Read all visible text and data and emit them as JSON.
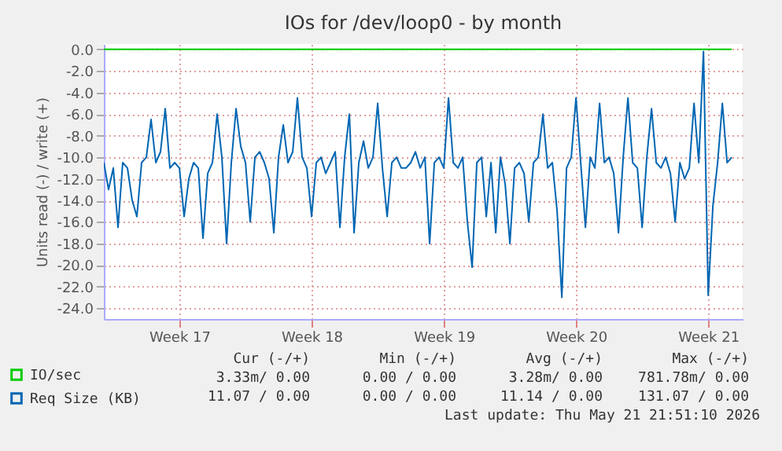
{
  "chart_data": {
    "type": "line",
    "title": "IOs for /dev/loop0 - by month",
    "ylabel": "Units read (-) / write (+)",
    "categories": [
      null,
      null,
      null,
      null,
      null,
      null,
      null,
      null,
      null,
      null,
      null,
      null,
      null,
      null,
      null,
      null,
      "Week 17",
      null,
      null,
      null,
      null,
      null,
      null,
      null,
      null,
      null,
      null,
      null,
      null,
      null,
      null,
      null,
      null,
      null,
      null,
      null,
      null,
      null,
      null,
      null,
      null,
      null,
      null,
      null,
      "Week 18",
      null,
      null,
      null,
      null,
      null,
      null,
      null,
      null,
      null,
      null,
      null,
      null,
      null,
      null,
      null,
      null,
      null,
      null,
      null,
      null,
      null,
      null,
      null,
      null,
      null,
      null,
      null,
      "Week 19",
      null,
      null,
      null,
      null,
      null,
      null,
      null,
      null,
      null,
      null,
      null,
      null,
      null,
      null,
      null,
      null,
      null,
      null,
      null,
      null,
      null,
      null,
      null,
      null,
      null,
      null,
      null,
      "Week 20",
      null,
      null,
      null,
      null,
      null,
      null,
      null,
      null,
      null,
      null,
      null,
      null,
      null,
      null,
      null,
      null,
      null,
      null,
      null,
      null,
      null,
      null,
      null,
      null,
      null,
      null,
      null,
      "Week 21",
      null,
      null,
      null,
      null,
      null
    ],
    "ylim": [
      -25,
      0.5
    ],
    "yticks": [
      {
        "value": -24,
        "label": "-24.0"
      },
      {
        "value": -22,
        "label": "-22.0"
      },
      {
        "value": -20,
        "label": "-20.0"
      },
      {
        "value": -18,
        "label": "-18.0"
      },
      {
        "value": -16,
        "label": "-16.0"
      },
      {
        "value": -14,
        "label": "-14.0"
      },
      {
        "value": -12,
        "label": "-12.0"
      },
      {
        "value": -10,
        "label": "-10.0"
      },
      {
        "value": -8,
        "label": "-8.0"
      },
      {
        "value": -6,
        "label": "-6.0"
      },
      {
        "value": -4,
        "label": "-4.0"
      },
      {
        "value": -2,
        "label": "-2.0"
      },
      {
        "value": 0,
        "label": "0.0"
      }
    ],
    "grid": true,
    "legend": "bottom left",
    "series": [
      {
        "name": "IO/sec",
        "color": "#00cc00",
        "values": [
          0,
          0,
          0,
          0,
          0,
          0,
          0,
          0,
          0,
          0,
          0,
          0,
          0,
          0,
          0,
          0,
          0,
          0,
          0,
          0,
          0,
          0,
          0,
          0,
          0,
          0,
          0,
          0,
          0,
          0,
          0,
          0,
          0,
          0,
          0,
          0,
          0,
          0,
          0,
          0,
          0,
          0,
          0,
          0,
          0,
          0,
          0,
          0,
          0,
          0,
          0,
          0,
          0,
          0,
          0,
          0,
          0,
          0,
          0,
          0,
          0,
          0,
          0,
          0,
          0,
          0,
          0,
          0,
          0,
          0,
          0,
          0,
          0,
          0,
          0,
          0,
          0,
          0,
          0,
          0,
          0,
          0,
          0,
          0,
          0,
          0,
          0,
          0,
          0,
          0,
          0,
          0,
          0,
          0,
          0,
          0,
          0,
          0,
          0,
          0,
          0,
          0,
          0,
          0,
          0,
          0,
          0,
          0,
          0,
          0,
          0,
          0,
          0,
          0,
          0,
          0,
          0,
          0,
          0,
          0,
          0,
          0,
          0,
          0,
          0,
          0,
          0,
          0,
          0,
          0,
          0,
          0,
          0,
          0
        ]
      },
      {
        "name": "Req Size (KB)",
        "color": "#0066b3",
        "values": [
          -10.5,
          -13,
          -11,
          -16.5,
          -10.5,
          -11,
          -14,
          -15.5,
          -10.5,
          -10,
          -6.5,
          -10.5,
          -9.5,
          -5.5,
          -11,
          -10.5,
          -11,
          -15.5,
          -12,
          -10.5,
          -11,
          -17.5,
          -11.5,
          -10.5,
          -6,
          -10,
          -18,
          -10.5,
          -5.5,
          -9,
          -10.5,
          -16,
          -10,
          -9.5,
          -10.5,
          -12,
          -17,
          -10,
          -7,
          -10.5,
          -9.5,
          -4.5,
          -10,
          -11,
          -15.5,
          -10.5,
          -10,
          -11.5,
          -10.5,
          -9.5,
          -16.5,
          -10,
          -6,
          -17,
          -10.5,
          -8.5,
          -11,
          -10,
          -5,
          -11,
          -15.5,
          -10.5,
          -10,
          -11,
          -11,
          -10.5,
          -9.5,
          -11,
          -10,
          -18,
          -10.5,
          -10,
          -11,
          -4.5,
          -10.5,
          -11,
          -10,
          -16,
          -20.2,
          -10.5,
          -10,
          -15.5,
          -10.5,
          -17,
          -10,
          -12.5,
          -18,
          -11,
          -10.5,
          -11.5,
          -16,
          -10.5,
          -10,
          -6,
          -11,
          -10.5,
          -15,
          -23,
          -11,
          -10,
          -4.5,
          -10.5,
          -16.5,
          -10,
          -11,
          -5,
          -10.5,
          -10,
          -11.5,
          -17,
          -10,
          -4.5,
          -10.5,
          -11,
          -16.5,
          -10,
          -5.5,
          -10.5,
          -11,
          -10,
          -11.5,
          -16,
          -10.5,
          -12,
          -11,
          -5,
          -10.5,
          -0.2,
          -22.8,
          -14.5,
          -10.5,
          -5,
          -10.5,
          -10
        ]
      }
    ],
    "annotations": [
      "Cur (-/+)",
      "Min (-/+)",
      "Avg (-/+)",
      "Max (-/+)",
      "3.33m/ 0.00",
      "0.00 / 0.00",
      "3.28m/ 0.00",
      "781.78m/ 0.00",
      "11.07 / 0.00",
      "0.00 / 0.00",
      "11.14 / 0.00",
      "131.07 / 0.00",
      "Last update: Thu May 21 21:51:10 2026"
    ]
  }
}
